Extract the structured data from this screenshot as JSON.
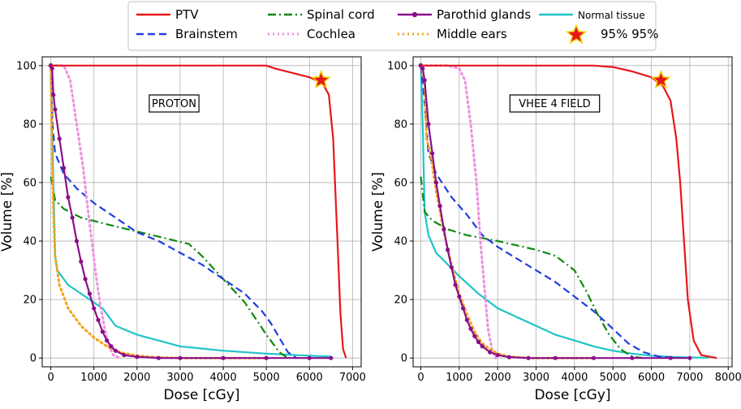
{
  "legend": [
    {
      "key": "ptv",
      "label": "PTV",
      "color": "#e8161b",
      "style": "solid"
    },
    {
      "key": "spinal",
      "label": "Spinal cord",
      "color": "#12880f",
      "style": "dashdot"
    },
    {
      "key": "parotid",
      "label": "Parothid glands",
      "color": "#8a0e8a",
      "style": "marker"
    },
    {
      "key": "normal",
      "label": "Normal tissue",
      "color": "#1ec4c8",
      "style": "solid"
    },
    {
      "key": "brainstem",
      "label": "Brainstem",
      "color": "#1f3fe0",
      "style": "dashed"
    },
    {
      "key": "cochlea",
      "label": "Cochlea",
      "color": "#ee8fe2",
      "style": "dotted"
    },
    {
      "key": "middle",
      "label": "Middle ears",
      "color": "#f5a31a",
      "style": "dotted"
    },
    {
      "key": "star",
      "label": "95% 95%",
      "color": "#e8161b",
      "style": "star"
    }
  ],
  "chart_data": [
    {
      "type": "line",
      "annotation": "PROTON",
      "xlabel": "Dose [cGy]",
      "ylabel": "Volume [%]",
      "xlim": [
        -200,
        7200
      ],
      "ylim": [
        -3,
        103
      ],
      "xticks": [
        0,
        1000,
        2000,
        3000,
        4000,
        5000,
        6000,
        7000
      ],
      "yticks": [
        0,
        20,
        40,
        60,
        80,
        100
      ],
      "grid": true,
      "star_point": [
        6270,
        95
      ],
      "series": {
        "ptv": [
          [
            0,
            100
          ],
          [
            5000,
            100
          ],
          [
            5200,
            99
          ],
          [
            5600,
            97.5
          ],
          [
            6000,
            96
          ],
          [
            6300,
            94
          ],
          [
            6450,
            90
          ],
          [
            6550,
            75
          ],
          [
            6650,
            40
          ],
          [
            6720,
            15
          ],
          [
            6780,
            3
          ],
          [
            6850,
            0
          ]
        ],
        "spinal": [
          [
            0,
            62
          ],
          [
            100,
            54
          ],
          [
            300,
            51
          ],
          [
            700,
            48
          ],
          [
            1500,
            45
          ],
          [
            2500,
            41.5
          ],
          [
            3200,
            39
          ],
          [
            3500,
            35
          ],
          [
            4000,
            27
          ],
          [
            4500,
            19
          ],
          [
            5000,
            8
          ],
          [
            5300,
            2
          ],
          [
            5500,
            0
          ]
        ],
        "brainstem": [
          [
            0,
            100
          ],
          [
            40,
            80
          ],
          [
            100,
            70
          ],
          [
            300,
            63
          ],
          [
            600,
            58
          ],
          [
            1000,
            53
          ],
          [
            1500,
            48
          ],
          [
            2000,
            43
          ],
          [
            2500,
            40
          ],
          [
            3000,
            36
          ],
          [
            3500,
            32
          ],
          [
            4000,
            27
          ],
          [
            4500,
            22
          ],
          [
            4900,
            16
          ],
          [
            5100,
            12
          ],
          [
            5300,
            7
          ],
          [
            5500,
            2
          ],
          [
            5700,
            0
          ]
        ],
        "cochlea": [
          [
            0,
            100
          ],
          [
            300,
            100
          ],
          [
            450,
            95
          ],
          [
            550,
            85
          ],
          [
            650,
            75
          ],
          [
            750,
            65
          ],
          [
            850,
            52
          ],
          [
            950,
            40
          ],
          [
            1050,
            28
          ],
          [
            1150,
            18
          ],
          [
            1250,
            10
          ],
          [
            1350,
            4
          ],
          [
            1450,
            1
          ],
          [
            1600,
            0
          ]
        ],
        "normal": [
          [
            0,
            100
          ],
          [
            60,
            60
          ],
          [
            100,
            35
          ],
          [
            150,
            30
          ],
          [
            400,
            25
          ],
          [
            700,
            22
          ],
          [
            1000,
            19
          ],
          [
            1200,
            17
          ],
          [
            1500,
            11
          ],
          [
            2000,
            8
          ],
          [
            3000,
            4
          ],
          [
            4000,
            2.5
          ],
          [
            5000,
            1.5
          ],
          [
            6000,
            0.8
          ],
          [
            6500,
            0.5
          ]
        ],
        "middle": [
          [
            0,
            100
          ],
          [
            30,
            70
          ],
          [
            60,
            50
          ],
          [
            100,
            35
          ],
          [
            200,
            25
          ],
          [
            400,
            17
          ],
          [
            700,
            11
          ],
          [
            1000,
            7
          ],
          [
            1300,
            4
          ],
          [
            1600,
            2
          ],
          [
            2000,
            0.8
          ],
          [
            2500,
            0.2
          ],
          [
            3000,
            0
          ],
          [
            5000,
            0
          ]
        ],
        "parotid": [
          [
            0,
            100
          ],
          [
            30,
            99
          ],
          [
            60,
            90
          ],
          [
            100,
            85
          ],
          [
            200,
            75
          ],
          [
            300,
            65
          ],
          [
            400,
            55
          ],
          [
            500,
            48
          ],
          [
            600,
            40
          ],
          [
            700,
            33
          ],
          [
            800,
            27
          ],
          [
            900,
            22
          ],
          [
            1000,
            17
          ],
          [
            1100,
            13
          ],
          [
            1200,
            9
          ],
          [
            1300,
            6
          ],
          [
            1400,
            4
          ],
          [
            1500,
            2.5
          ],
          [
            1700,
            1
          ],
          [
            2000,
            0.4
          ],
          [
            2500,
            0
          ],
          [
            3000,
            0
          ],
          [
            4000,
            0
          ],
          [
            5000,
            0
          ],
          [
            6000,
            0
          ],
          [
            6500,
            0
          ]
        ]
      }
    },
    {
      "type": "line",
      "annotation": "VHEE 4 FIELD",
      "xlabel": "Dose [cGy]",
      "ylabel": "Volume [%]",
      "xlim": [
        -200,
        8100
      ],
      "ylim": [
        -3,
        103
      ],
      "xticks": [
        0,
        1000,
        2000,
        3000,
        4000,
        5000,
        6000,
        7000,
        8000
      ],
      "yticks": [
        0,
        20,
        40,
        60,
        80,
        100
      ],
      "grid": true,
      "star_point": [
        6250,
        95
      ],
      "series": {
        "ptv": [
          [
            0,
            100
          ],
          [
            4500,
            100
          ],
          [
            5000,
            99.5
          ],
          [
            5500,
            98
          ],
          [
            6000,
            96
          ],
          [
            6300,
            93
          ],
          [
            6500,
            88
          ],
          [
            6650,
            75
          ],
          [
            6750,
            60
          ],
          [
            6850,
            40
          ],
          [
            6950,
            20
          ],
          [
            7100,
            6
          ],
          [
            7300,
            1
          ],
          [
            7700,
            0
          ]
        ],
        "spinal": [
          [
            0,
            62
          ],
          [
            100,
            50
          ],
          [
            300,
            47
          ],
          [
            700,
            44
          ],
          [
            1200,
            42
          ],
          [
            2000,
            40
          ],
          [
            2500,
            38.5
          ],
          [
            3000,
            37
          ],
          [
            3500,
            35
          ],
          [
            4000,
            30
          ],
          [
            4300,
            23
          ],
          [
            4600,
            15
          ],
          [
            4900,
            8
          ],
          [
            5200,
            3
          ],
          [
            5500,
            0.5
          ],
          [
            5800,
            0
          ]
        ],
        "brainstem": [
          [
            0,
            100
          ],
          [
            80,
            90
          ],
          [
            200,
            70
          ],
          [
            400,
            63
          ],
          [
            800,
            55
          ],
          [
            1200,
            49
          ],
          [
            1600,
            42
          ],
          [
            2000,
            38
          ],
          [
            2500,
            34
          ],
          [
            3000,
            30
          ],
          [
            3500,
            26
          ],
          [
            4000,
            21
          ],
          [
            4500,
            16
          ],
          [
            5000,
            10
          ],
          [
            5400,
            5
          ],
          [
            5800,
            2
          ],
          [
            6200,
            0.5
          ],
          [
            6600,
            0
          ]
        ],
        "cochlea": [
          [
            0,
            100
          ],
          [
            300,
            100
          ],
          [
            700,
            100
          ],
          [
            1000,
            99
          ],
          [
            1150,
            95
          ],
          [
            1300,
            80
          ],
          [
            1450,
            60
          ],
          [
            1550,
            40
          ],
          [
            1650,
            25
          ],
          [
            1750,
            10
          ],
          [
            1850,
            3
          ],
          [
            1950,
            0
          ]
        ],
        "normal": [
          [
            0,
            100
          ],
          [
            50,
            80
          ],
          [
            100,
            50
          ],
          [
            200,
            42
          ],
          [
            400,
            36
          ],
          [
            700,
            32
          ],
          [
            1000,
            28
          ],
          [
            1500,
            22
          ],
          [
            2000,
            17
          ],
          [
            2500,
            14
          ],
          [
            3000,
            11
          ],
          [
            3500,
            8
          ],
          [
            4000,
            6
          ],
          [
            4500,
            4
          ],
          [
            5000,
            2.5
          ],
          [
            5500,
            1.5
          ],
          [
            6000,
            0.8
          ],
          [
            6500,
            0.4
          ],
          [
            7000,
            0.2
          ],
          [
            7500,
            0.1
          ]
        ],
        "middle": [
          [
            0,
            100
          ],
          [
            100,
            95
          ],
          [
            150,
            75
          ],
          [
            250,
            70
          ],
          [
            400,
            57
          ],
          [
            600,
            43
          ],
          [
            800,
            32
          ],
          [
            1000,
            22
          ],
          [
            1200,
            15
          ],
          [
            1400,
            9
          ],
          [
            1600,
            5
          ],
          [
            1800,
            3
          ],
          [
            2000,
            1.5
          ],
          [
            2300,
            0.5
          ],
          [
            2800,
            0
          ],
          [
            4500,
            0
          ]
        ],
        "parotid": [
          [
            0,
            100
          ],
          [
            50,
            99
          ],
          [
            100,
            95
          ],
          [
            200,
            80
          ],
          [
            300,
            70
          ],
          [
            400,
            60
          ],
          [
            500,
            52
          ],
          [
            600,
            44
          ],
          [
            700,
            37
          ],
          [
            800,
            31
          ],
          [
            900,
            25
          ],
          [
            1000,
            21
          ],
          [
            1100,
            17
          ],
          [
            1200,
            13
          ],
          [
            1300,
            10
          ],
          [
            1400,
            7.5
          ],
          [
            1500,
            5.5
          ],
          [
            1600,
            4
          ],
          [
            1800,
            2
          ],
          [
            2000,
            1
          ],
          [
            2300,
            0.3
          ],
          [
            2800,
            0
          ],
          [
            3500,
            0
          ],
          [
            4500,
            0
          ],
          [
            5500,
            0
          ],
          [
            6500,
            0
          ],
          [
            7000,
            0
          ]
        ]
      }
    }
  ]
}
